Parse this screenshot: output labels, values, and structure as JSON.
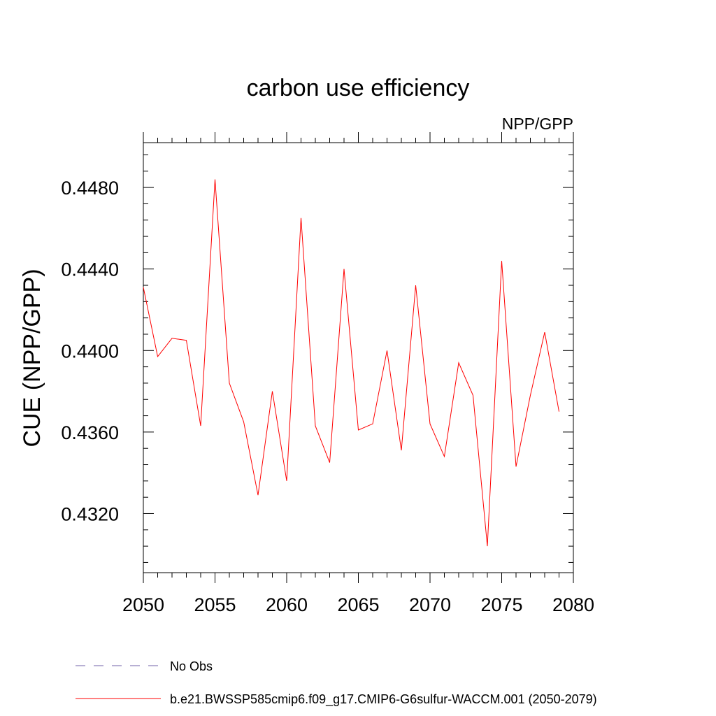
{
  "chart_data": {
    "type": "line",
    "title": "carbon use efficiency",
    "subtitle": "NPP/GPP",
    "ylabel": "CUE  (NPP/GPP)",
    "xlabel": "",
    "xlim": [
      2050,
      2080
    ],
    "ylim": [
      0.4291,
      0.4502
    ],
    "x_ticks": [
      2050,
      2055,
      2060,
      2065,
      2070,
      2075,
      2080
    ],
    "x_tick_labels": [
      "2050",
      "2055",
      "2060",
      "2065",
      "2070",
      "2075",
      "2080"
    ],
    "y_ticks": [
      0.432,
      0.436,
      0.44,
      0.444,
      0.448
    ],
    "y_tick_labels": [
      "0.4320",
      "0.4360",
      "0.4400",
      "0.4440",
      "0.4480"
    ],
    "grid": false,
    "legend_position": "bottom",
    "series": [
      {
        "name": "b.e21.BWSSP585cmip6.f09_g17.CMIP6-G6sulfur-WACCM.001 (2050-2079)",
        "color": "#ff0000",
        "style": "solid",
        "x": [
          2050,
          2051,
          2052,
          2053,
          2054,
          2055,
          2056,
          2057,
          2058,
          2059,
          2060,
          2061,
          2062,
          2063,
          2064,
          2065,
          2066,
          2067,
          2068,
          2069,
          2070,
          2071,
          2072,
          2073,
          2074,
          2075,
          2076,
          2077,
          2078,
          2079
        ],
        "y": [
          0.4431,
          0.4397,
          0.4406,
          0.4405,
          0.4363,
          0.4484,
          0.4384,
          0.4365,
          0.4329,
          0.438,
          0.4336,
          0.4465,
          0.4363,
          0.4345,
          0.444,
          0.4361,
          0.4364,
          0.44,
          0.4351,
          0.4432,
          0.4364,
          0.4348,
          0.4394,
          0.4378,
          0.4304,
          0.4444,
          0.4343,
          0.4378,
          0.4409,
          0.437
        ]
      },
      {
        "name": "No Obs",
        "color": "#7060a8",
        "style": "dashed",
        "x": [],
        "y": []
      }
    ]
  }
}
